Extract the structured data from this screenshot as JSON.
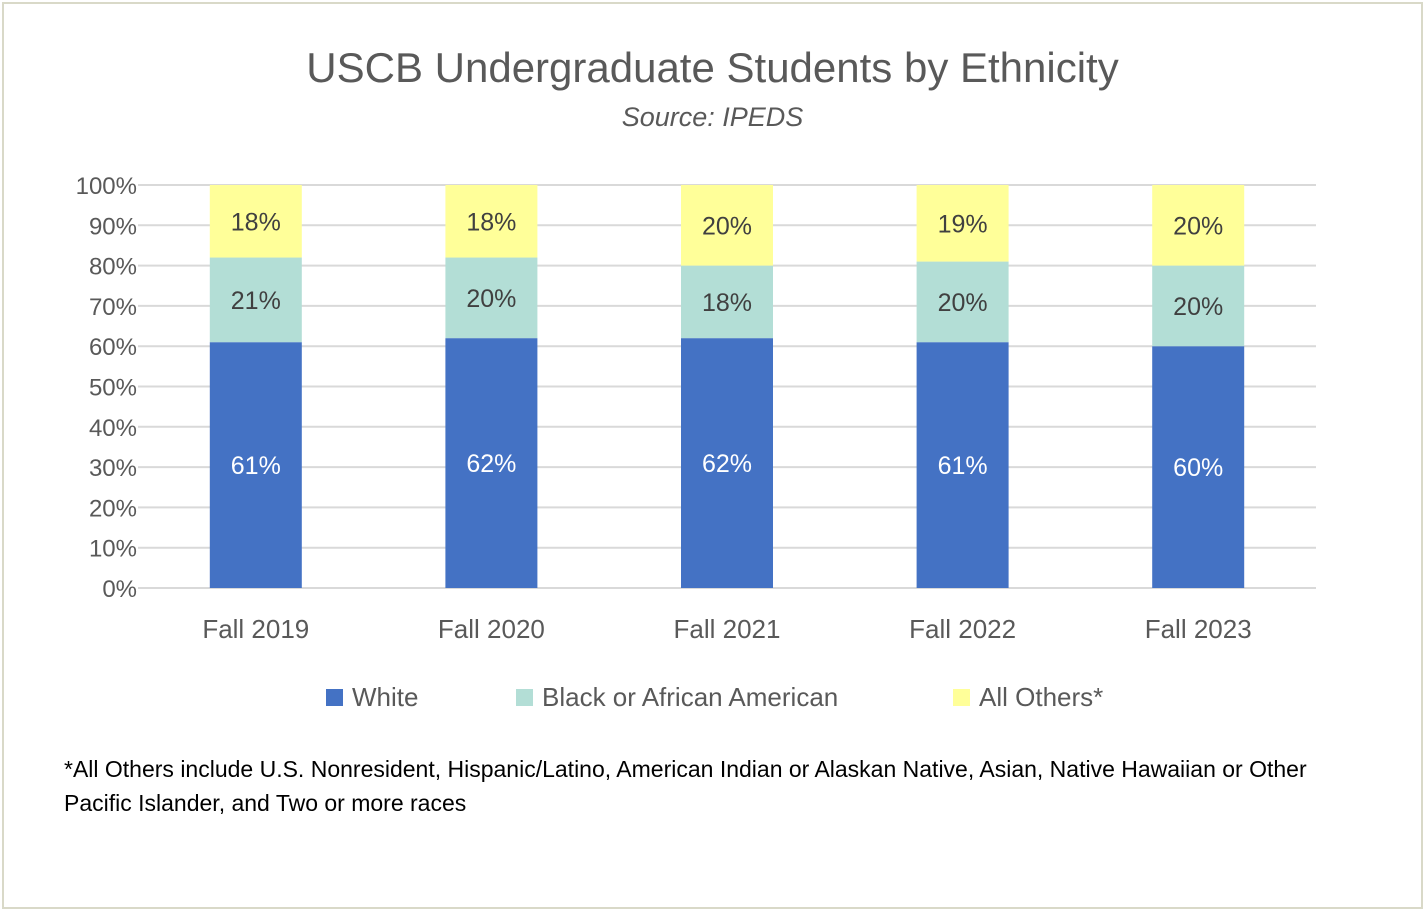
{
  "chart_data": {
    "type": "bar",
    "stacked": true,
    "title": "USCB Undergraduate Students by Ethnicity",
    "subtitle": "Source: IPEDS",
    "categories": [
      "Fall 2019",
      "Fall 2020",
      "Fall 2021",
      "Fall 2022",
      "Fall 2023"
    ],
    "series": [
      {
        "name": "White",
        "values": [
          61,
          62,
          62,
          61,
          60
        ],
        "labels": [
          "61%",
          "62%",
          "62%",
          "61%",
          "60%"
        ],
        "color": "#4472c4",
        "label_color": "#ffffff"
      },
      {
        "name": "Black or African American",
        "values": [
          21,
          20,
          18,
          20,
          20
        ],
        "labels": [
          "21%",
          "20%",
          "18%",
          "20%",
          "20%"
        ],
        "color": "#b3ded6",
        "label_color": "#404040"
      },
      {
        "name": "All Others*",
        "values": [
          18,
          18,
          20,
          19,
          20
        ],
        "labels": [
          "18%",
          "18%",
          "20%",
          "19%",
          "20%"
        ],
        "color": "#ffff99",
        "label_color": "#404040"
      }
    ],
    "ylim": [
      0,
      100
    ],
    "yticks": [
      "0%",
      "10%",
      "20%",
      "30%",
      "40%",
      "50%",
      "60%",
      "70%",
      "80%",
      "90%",
      "100%"
    ],
    "grid": true,
    "legend_position": "bottom",
    "footnote": "*All Others include U.S. Nonresident, Hispanic/Latino, American Indian or Alaskan Native, Asian, Native Hawaiian or Other Pacific Islander, and Two or more races"
  }
}
